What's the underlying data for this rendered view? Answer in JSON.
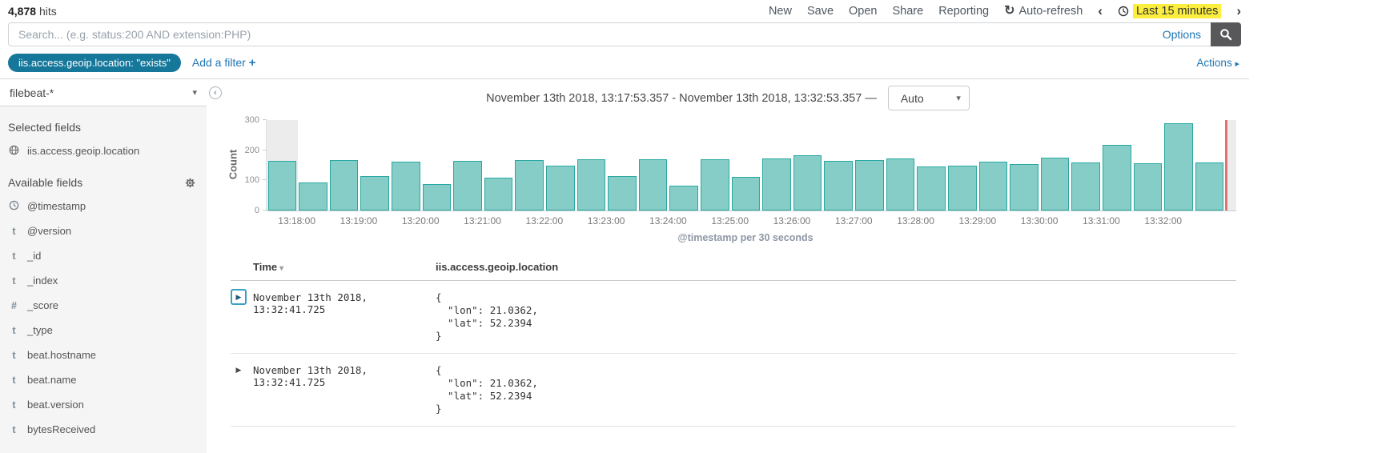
{
  "topnav": {
    "hits_value": "4,878",
    "hits_label": "hits",
    "menu": [
      "New",
      "Save",
      "Open",
      "Share",
      "Reporting"
    ],
    "auto_refresh_label": "Auto-refresh",
    "time_range_label": "Last 15 minutes",
    "prev_chevron": "‹",
    "next_chevron": "›"
  },
  "search_bar": {
    "value": "",
    "placeholder": "Search... (e.g. status:200 AND extension:PHP)",
    "options_label": "Options"
  },
  "filter_bar": {
    "filter_pill": "iis.access.geoip.location: \"exists\"",
    "add_filter_label": "Add a filter",
    "add_filter_plus": "+",
    "actions_label": "Actions",
    "actions_caret": "▸"
  },
  "sidebar": {
    "index_pattern": "filebeat-*",
    "selected_fields_title": "Selected fields",
    "selected_fields": [
      {
        "icon": "globe",
        "name": "iis.access.geoip.location"
      }
    ],
    "available_fields_title": "Available fields",
    "available_fields": [
      {
        "icon": "clock",
        "name": "@timestamp"
      },
      {
        "icon": "t",
        "name": "@version"
      },
      {
        "icon": "t",
        "name": "_id"
      },
      {
        "icon": "t",
        "name": "_index"
      },
      {
        "icon": "hash",
        "name": "_score"
      },
      {
        "icon": "t",
        "name": "_type"
      },
      {
        "icon": "t",
        "name": "beat.hostname"
      },
      {
        "icon": "t",
        "name": "beat.name"
      },
      {
        "icon": "t",
        "name": "beat.version"
      },
      {
        "icon": "t",
        "name": "bytesReceived"
      }
    ]
  },
  "main": {
    "time_range_title": "November 13th 2018, 13:17:53.357 - November 13th 2018, 13:32:53.357 —",
    "interval_value": "Auto"
  },
  "chart_data": {
    "type": "bar",
    "title": "",
    "ylabel": "Count",
    "xlabel": "@timestamp per 30 seconds",
    "ylim": [
      0,
      300
    ],
    "yticks": [
      0,
      100,
      200,
      300
    ],
    "bucket_interval_seconds": 30,
    "x": [
      "13:17:30",
      "13:18:00",
      "13:18:30",
      "13:19:00",
      "13:19:30",
      "13:20:00",
      "13:20:30",
      "13:21:00",
      "13:21:30",
      "13:22:00",
      "13:22:30",
      "13:23:00",
      "13:23:30",
      "13:24:00",
      "13:24:30",
      "13:25:00",
      "13:25:30",
      "13:26:00",
      "13:26:30",
      "13:27:00",
      "13:27:30",
      "13:28:00",
      "13:28:30",
      "13:29:00",
      "13:29:30",
      "13:30:00",
      "13:30:30",
      "13:31:00",
      "13:31:30",
      "13:32:00",
      "13:32:30"
    ],
    "values": [
      165,
      92,
      168,
      113,
      163,
      87,
      165,
      110,
      168,
      148,
      170,
      115,
      170,
      83,
      170,
      112,
      173,
      182,
      165,
      168,
      172,
      145,
      150,
      163,
      155,
      175,
      160,
      218,
      158,
      290,
      160
    ],
    "x_tick_labels": [
      "13:18:00",
      "13:19:00",
      "13:20:00",
      "13:21:00",
      "13:22:00",
      "13:23:00",
      "13:24:00",
      "13:25:00",
      "13:26:00",
      "13:27:00",
      "13:28:00",
      "13:29:00",
      "13:30:00",
      "13:31:00",
      "13:32:00"
    ],
    "legend": "none",
    "grid": "off",
    "bar_fill": "#85CDC6",
    "bar_border": "#28A8A1",
    "partial_bucket_fill": "#ECECEC",
    "now_marker_color": "#DE7373"
  },
  "table": {
    "columns": [
      {
        "label": "Time",
        "sort_caret": "▾"
      },
      {
        "label": "iis.access.geoip.location"
      }
    ],
    "rows": [
      {
        "time": "November 13th 2018, 13:32:41.725",
        "geoip_location": "{\n  \"lon\": 21.0362,\n  \"lat\": 52.2394\n}"
      },
      {
        "time": "November 13th 2018, 13:32:41.725",
        "geoip_location": "{\n  \"lon\": 21.0362,\n  \"lat\": 52.2394\n}"
      }
    ]
  },
  "colors": {
    "filter_pill_bg": "#15789B",
    "link_blue": "#2077B4",
    "time_highlight_yellow": "#FBEE3F",
    "search_button_bg": "#58585A",
    "sidebar_bg": "#F5F5F5"
  }
}
